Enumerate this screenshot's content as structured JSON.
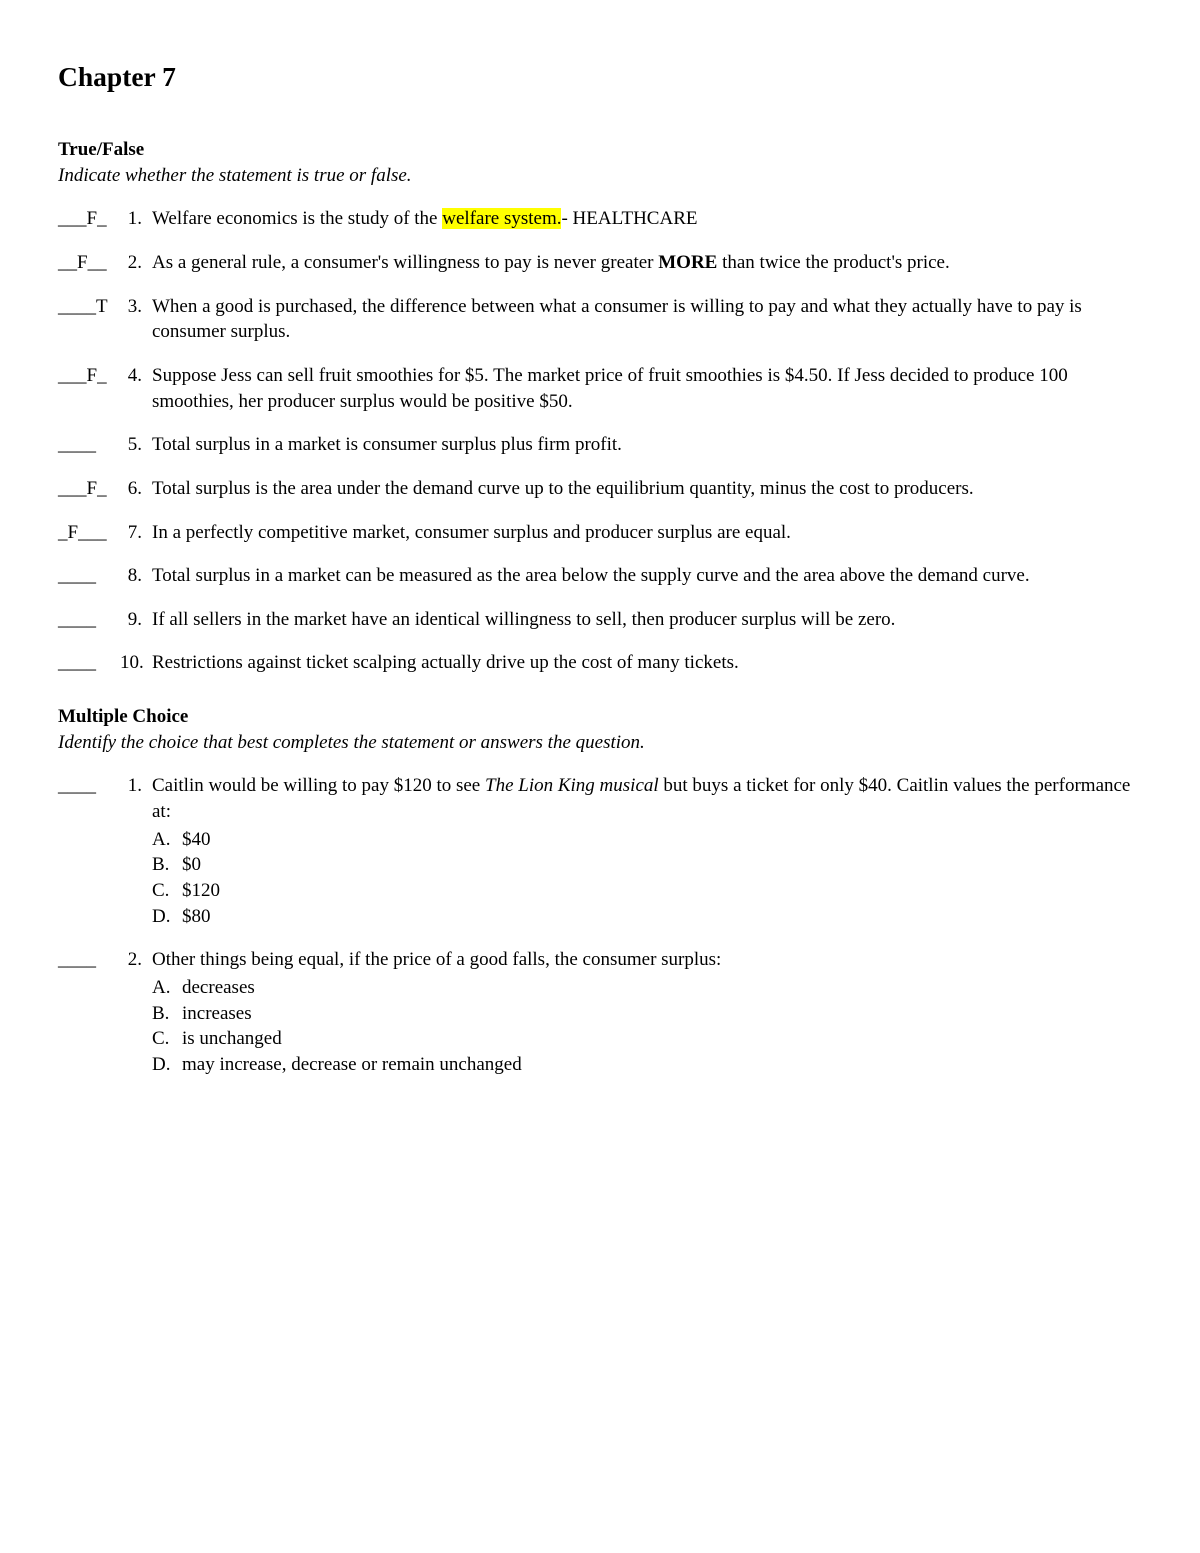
{
  "chapter": {
    "title": "Chapter 7"
  },
  "trueFalse": {
    "title": "True/False",
    "instruction": "Indicate whether the statement is true or false.",
    "questions": [
      {
        "answer": "___F_",
        "number": "1.",
        "textPre": "Welfare economics is the study of the ",
        "highlighted": "welfare system.",
        "textPost": "- HEALTHCARE"
      },
      {
        "answer": "__F__",
        "number": "2.",
        "textPre": "As a general rule, a consumer's willingness to pay is never greater ",
        "bold": "MORE",
        "textPost": " than twice the product's price."
      },
      {
        "answer": "____T",
        "number": "3.",
        "text": "When a good is purchased, the difference between what a consumer is willing to pay and what they actually have to pay is consumer surplus."
      },
      {
        "answer": "___F_",
        "number": "4.",
        "text": "Suppose Jess can sell fruit smoothies for $5. The market price of fruit smoothies is $4.50. If Jess decided to produce 100 smoothies, her producer surplus would be positive $50."
      },
      {
        "answer": "____",
        "number": "5.",
        "text": "Total surplus in a market is consumer surplus plus firm profit."
      },
      {
        "answer": "___F_",
        "number": "6.",
        "text": "Total surplus is the area under the demand curve up to the equilibrium quantity, minus the cost to producers."
      },
      {
        "answer": "_F___",
        "number": "7.",
        "text": "In a perfectly competitive market, consumer surplus and producer surplus are equal."
      },
      {
        "answer": "____",
        "number": "8.",
        "text": "Total surplus in a market can be measured as the area below the supply curve and the area above the demand curve."
      },
      {
        "answer": "____",
        "number": "9.",
        "text": "If all sellers in the market have an identical willingness to sell, then producer surplus will be zero."
      },
      {
        "answer": "____",
        "number": "10.",
        "text": "Restrictions against ticket scalping actually drive up the cost of many tickets."
      }
    ]
  },
  "multipleChoice": {
    "title": "Multiple Choice",
    "instruction": "Identify the choice that best completes the statement or answers the question.",
    "questions": [
      {
        "answer": "____",
        "number": "1.",
        "textPre": "Caitlin would be willing to pay $120 to see ",
        "italic": "The Lion King musical",
        "textPost": " but buys a ticket for only $40. Caitlin values the performance at:",
        "choices": [
          {
            "letter": "A.",
            "text": "$40"
          },
          {
            "letter": "B.",
            "text": "$0"
          },
          {
            "letter": "C.",
            "text": "$120"
          },
          {
            "letter": "D.",
            "text": "$80"
          }
        ]
      },
      {
        "answer": "____",
        "number": "2.",
        "text": "Other things being equal, if the price of a good falls, the consumer surplus:",
        "choices": [
          {
            "letter": "A.",
            "text": "decreases"
          },
          {
            "letter": "B.",
            "text": "increases"
          },
          {
            "letter": "C.",
            "text": "is unchanged"
          },
          {
            "letter": "D.",
            "text": "may increase, decrease or remain unchanged"
          }
        ]
      }
    ]
  }
}
